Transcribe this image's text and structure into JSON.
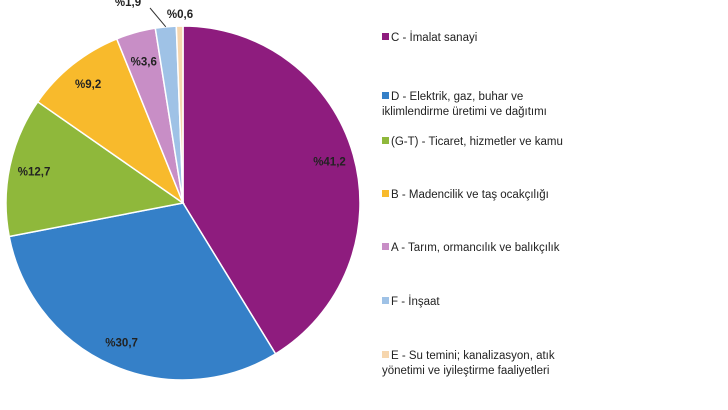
{
  "chart_data": {
    "type": "pie",
    "title": "",
    "start": "top",
    "direction": "clockwise",
    "legend_position": "right",
    "slices": [
      {
        "code": "C",
        "legend": "C - İmalat sanayi",
        "legend2": "",
        "value": 41.2,
        "label": "%41,2",
        "color": "#8E1C7E"
      },
      {
        "code": "D",
        "legend": "D - Elektrik, gaz, buhar ve",
        "legend2": "iklimlendirme üretimi ve dağıtımı",
        "value": 30.7,
        "label": "%30,7",
        "color": "#3580C8"
      },
      {
        "code": "G-T",
        "legend": "(G-T) - Ticaret, hizmetler ve kamu",
        "legend2": "",
        "value": 12.7,
        "label": "%12,7",
        "color": "#8FB83B"
      },
      {
        "code": "B",
        "legend": "B - Madencilik ve taş ocakçılığı",
        "legend2": "",
        "value": 9.2,
        "label": "%9,2",
        "color": "#F8BA2C"
      },
      {
        "code": "A",
        "legend": "A - Tarım, ormancılık ve balıkçılık",
        "legend2": "",
        "value": 3.6,
        "label": "%3,6",
        "color": "#C88EC6"
      },
      {
        "code": "F",
        "legend": "F - İnşaat",
        "legend2": "",
        "value": 1.9,
        "label": "%1,9",
        "color": "#9FC2E6"
      },
      {
        "code": "E",
        "legend": "E - Su temini; kanalizasyon, atık",
        "legend2": "yönetimi ve iyileştirme faaliyetleri",
        "value": 0.6,
        "label": "%0,6",
        "color": "#F6D6AE"
      }
    ]
  }
}
